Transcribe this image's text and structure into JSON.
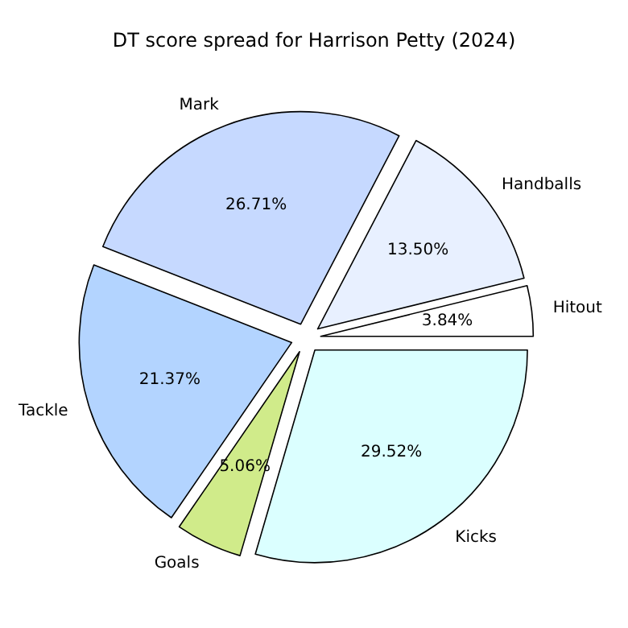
{
  "chart_data": {
    "type": "pie",
    "title": "DT score spread for Harrison Petty (2024)",
    "categories": [
      "Hitout",
      "Handballs",
      "Mark",
      "Tackle",
      "Goals",
      "Kicks"
    ],
    "values": [
      3.84,
      13.5,
      26.71,
      21.37,
      5.06,
      29.52
    ],
    "colors": [
      "#ffffff",
      "#e8f0ff",
      "#c6d9ff",
      "#b3d4ff",
      "#d0eb8a",
      "#dbffff"
    ],
    "value_labels": [
      "3.84%",
      "13.50%",
      "26.71%",
      "21.37%",
      "5.06%",
      "29.52%"
    ]
  }
}
